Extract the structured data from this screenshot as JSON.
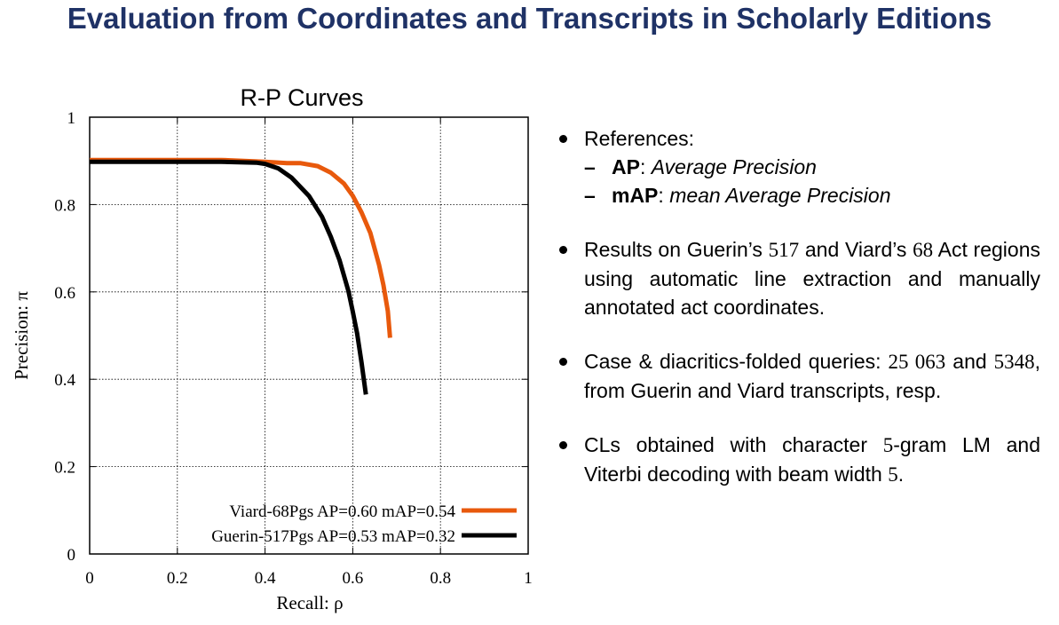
{
  "slide": {
    "title": "Evaluation from Coordinates and Transcripts in Scholarly Editions"
  },
  "chart_data": {
    "type": "line",
    "title": "R-P Curves",
    "xlabel": "Recall: ρ",
    "ylabel": "Precision: π",
    "xlim": [
      0,
      1
    ],
    "ylim": [
      0,
      1
    ],
    "xticks": [
      "0",
      "0.2",
      "0.4",
      "0.6",
      "0.8",
      "1"
    ],
    "yticks": [
      "0",
      "0.2",
      "0.4",
      "0.6",
      "0.8",
      "1"
    ],
    "grid": true,
    "legend_position": "bottom-right",
    "series": [
      {
        "name": "Viard-68Pgs AP=0.60 mAP=0.54",
        "color": "#e8590c",
        "x": [
          0.0,
          0.1,
          0.2,
          0.3,
          0.4,
          0.45,
          0.48,
          0.52,
          0.55,
          0.58,
          0.6,
          0.62,
          0.64,
          0.66,
          0.67,
          0.68,
          0.685
        ],
        "y": [
          0.902,
          0.902,
          0.902,
          0.902,
          0.898,
          0.895,
          0.895,
          0.888,
          0.873,
          0.848,
          0.82,
          0.782,
          0.735,
          0.662,
          0.615,
          0.556,
          0.495
        ]
      },
      {
        "name": "Guerin-517Pgs AP=0.53 mAP=0.32",
        "color": "#000000",
        "x": [
          0.0,
          0.1,
          0.2,
          0.3,
          0.38,
          0.4,
          0.43,
          0.46,
          0.5,
          0.53,
          0.55,
          0.57,
          0.59,
          0.6,
          0.61,
          0.62,
          0.63
        ],
        "y": [
          0.898,
          0.898,
          0.898,
          0.898,
          0.896,
          0.893,
          0.883,
          0.862,
          0.82,
          0.772,
          0.726,
          0.672,
          0.602,
          0.555,
          0.505,
          0.438,
          0.365
        ]
      }
    ]
  },
  "bullets": {
    "b1_text": "References:",
    "ap_term": "AP",
    "ap_sep": ": ",
    "ap_def": "Average Precision",
    "map_term": "mAP",
    "map_sep": ": ",
    "map_def": "mean Average Precision",
    "b2_pre": "Results on Guerin’s ",
    "b2_num1": "517",
    "b2_mid": " and Viard’s ",
    "b2_num2": "68",
    "b2_post": " Act regions using automatic line extraction and manually annotated act coordinates.",
    "b3_pre": "Case & diacritics-folded queries: ",
    "b3_num1": "25 063",
    "b3_mid": " and ",
    "b3_num2": "5348",
    "b3_post": ", from Guerin and Viard transcripts, resp.",
    "b4_pre": "CLs obtained with character ",
    "b4_num1": "5",
    "b4_mid": "-gram LM and Viterbi decoding with beam width ",
    "b4_num2": "5",
    "b4_post": "."
  }
}
